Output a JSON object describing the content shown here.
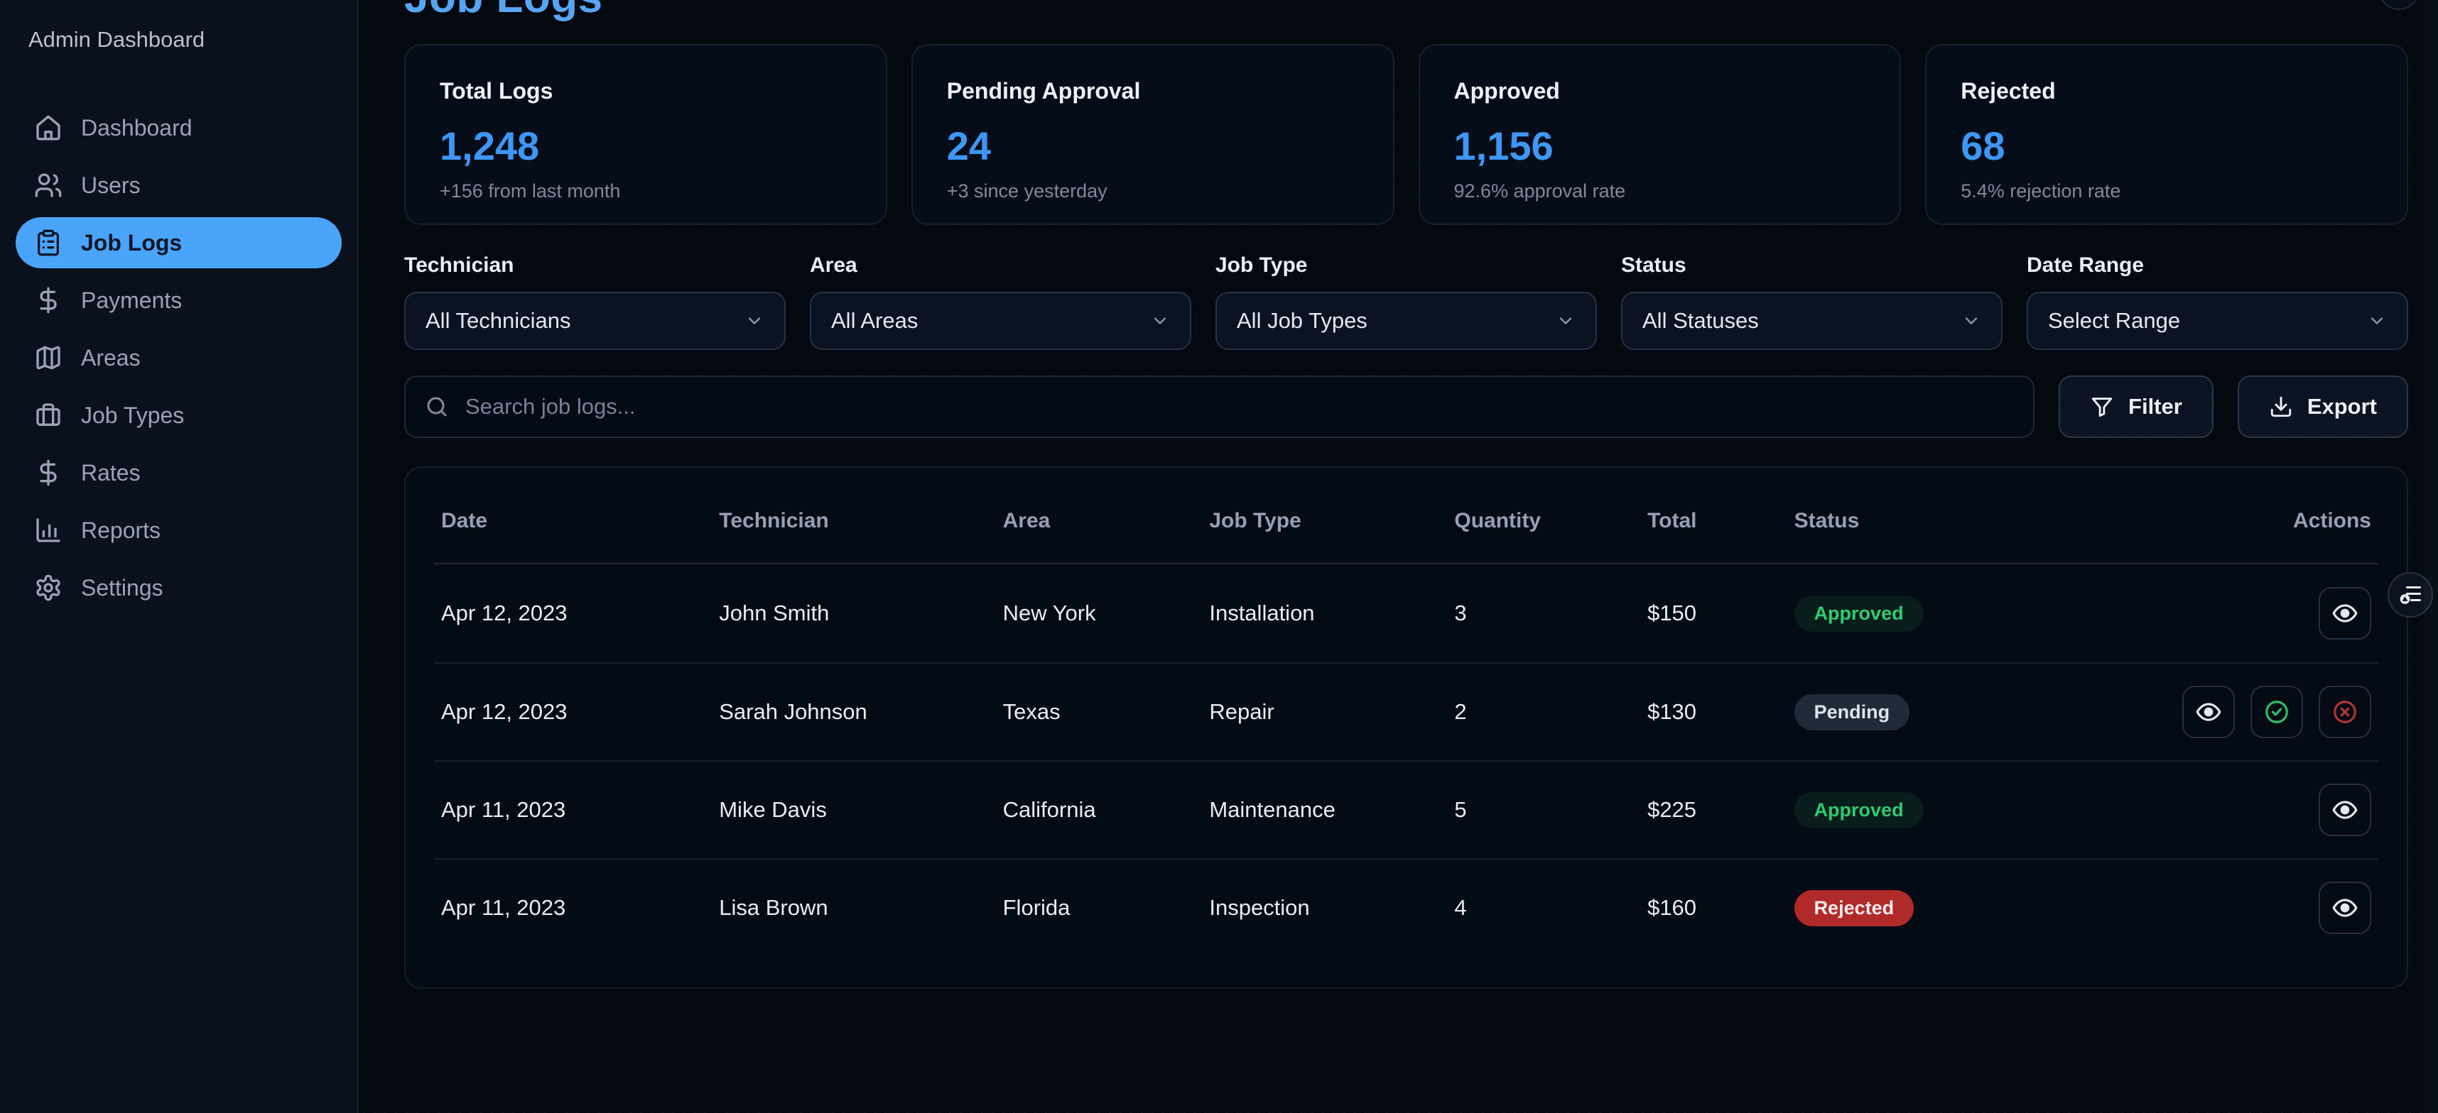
{
  "app": {
    "title": "Admin Dashboard"
  },
  "page": {
    "title": "Job Logs"
  },
  "sidebar": {
    "items": [
      {
        "label": "Dashboard",
        "icon": "home-icon",
        "active": false
      },
      {
        "label": "Users",
        "icon": "users-icon",
        "active": false
      },
      {
        "label": "Job Logs",
        "icon": "clipboard-icon",
        "active": true
      },
      {
        "label": "Payments",
        "icon": "dollar-icon",
        "active": false
      },
      {
        "label": "Areas",
        "icon": "map-icon",
        "active": false
      },
      {
        "label": "Job Types",
        "icon": "briefcase-icon",
        "active": false
      },
      {
        "label": "Rates",
        "icon": "dollar-icon",
        "active": false
      },
      {
        "label": "Reports",
        "icon": "bar-chart-icon",
        "active": false
      },
      {
        "label": "Settings",
        "icon": "gear-icon",
        "active": false
      }
    ]
  },
  "stats": [
    {
      "label": "Total Logs",
      "value": "1,248",
      "note": "+156 from last month"
    },
    {
      "label": "Pending Approval",
      "value": "24",
      "note": "+3 since yesterday"
    },
    {
      "label": "Approved",
      "value": "1,156",
      "note": "92.6% approval rate"
    },
    {
      "label": "Rejected",
      "value": "68",
      "note": "5.4% rejection rate"
    }
  ],
  "filters": [
    {
      "label": "Technician",
      "value": "All Technicians"
    },
    {
      "label": "Area",
      "value": "All Areas"
    },
    {
      "label": "Job Type",
      "value": "All Job Types"
    },
    {
      "label": "Status",
      "value": "All Statuses"
    },
    {
      "label": "Date Range",
      "value": "Select Range"
    }
  ],
  "search": {
    "placeholder": "Search job logs..."
  },
  "toolbar": {
    "filter_label": "Filter",
    "export_label": "Export"
  },
  "table": {
    "columns": [
      "Date",
      "Technician",
      "Area",
      "Job Type",
      "Quantity",
      "Total",
      "Status",
      "Actions"
    ],
    "rows": [
      {
        "date": "Apr 12, 2023",
        "technician": "John Smith",
        "area": "New York",
        "job_type": "Installation",
        "quantity": "3",
        "total": "$150",
        "status": "Approved",
        "actions": [
          "view"
        ]
      },
      {
        "date": "Apr 12, 2023",
        "technician": "Sarah Johnson",
        "area": "Texas",
        "job_type": "Repair",
        "quantity": "2",
        "total": "$130",
        "status": "Pending",
        "actions": [
          "view",
          "approve",
          "reject"
        ]
      },
      {
        "date": "Apr 11, 2023",
        "technician": "Mike Davis",
        "area": "California",
        "job_type": "Maintenance",
        "quantity": "5",
        "total": "$225",
        "status": "Approved",
        "actions": [
          "view"
        ]
      },
      {
        "date": "Apr 11, 2023",
        "technician": "Lisa Brown",
        "area": "Florida",
        "job_type": "Inspection",
        "quantity": "4",
        "total": "$160",
        "status": "Rejected",
        "actions": [
          "view"
        ]
      }
    ]
  },
  "colors": {
    "accent_blue": "#4aa5fa",
    "title_blue": "#57a5f3",
    "approved_green": "#2fcb72",
    "rejected_red": "#b12a2a",
    "pending_text": "#dde4ee"
  }
}
